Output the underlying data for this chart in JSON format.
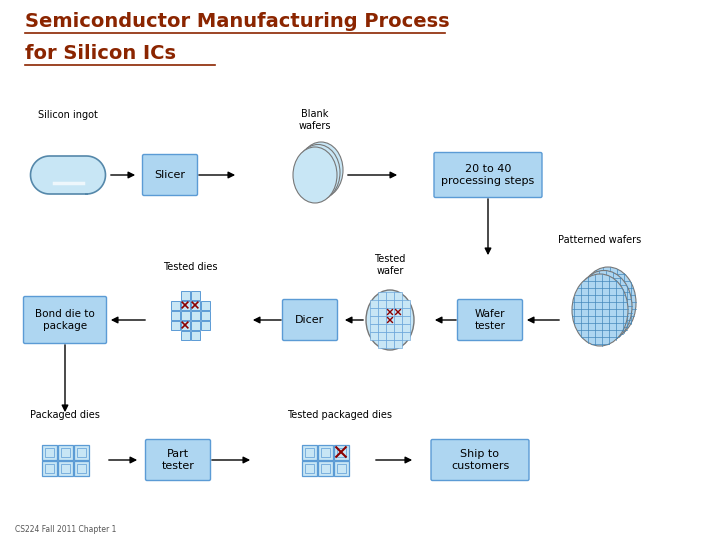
{
  "title_line1": "Semiconductor Manufacturing Process",
  "title_line2": "for Silicon ICs",
  "title_color": "#8B2500",
  "title_fontsize": 14,
  "bg_color": "#ffffff",
  "box_fill": "#AED6F1",
  "box_edge": "#5B9BD5",
  "light_fill": "#C8E6F5",
  "footer": "CS224 Fall 2011 Chapter 1",
  "labels": {
    "silicon_ingot": "Silicon ingot",
    "slicer": "Slicer",
    "blank_wafers": "Blank\nwafers",
    "processing": "20 to 40\nprocessing steps",
    "tested_dies": "Tested dies",
    "tested_wafer": "Tested\nwafer",
    "patterned_wafers": "Patterned wafers",
    "bond_die": "Bond die to\npackage",
    "dicer": "Dicer",
    "wafer_tester": "Wafer\ntester",
    "packaged_dies": "Packaged dies",
    "tested_packaged": "Tested packaged dies",
    "part_tester": "Part\ntester",
    "ship": "Ship to\ncustomers"
  }
}
